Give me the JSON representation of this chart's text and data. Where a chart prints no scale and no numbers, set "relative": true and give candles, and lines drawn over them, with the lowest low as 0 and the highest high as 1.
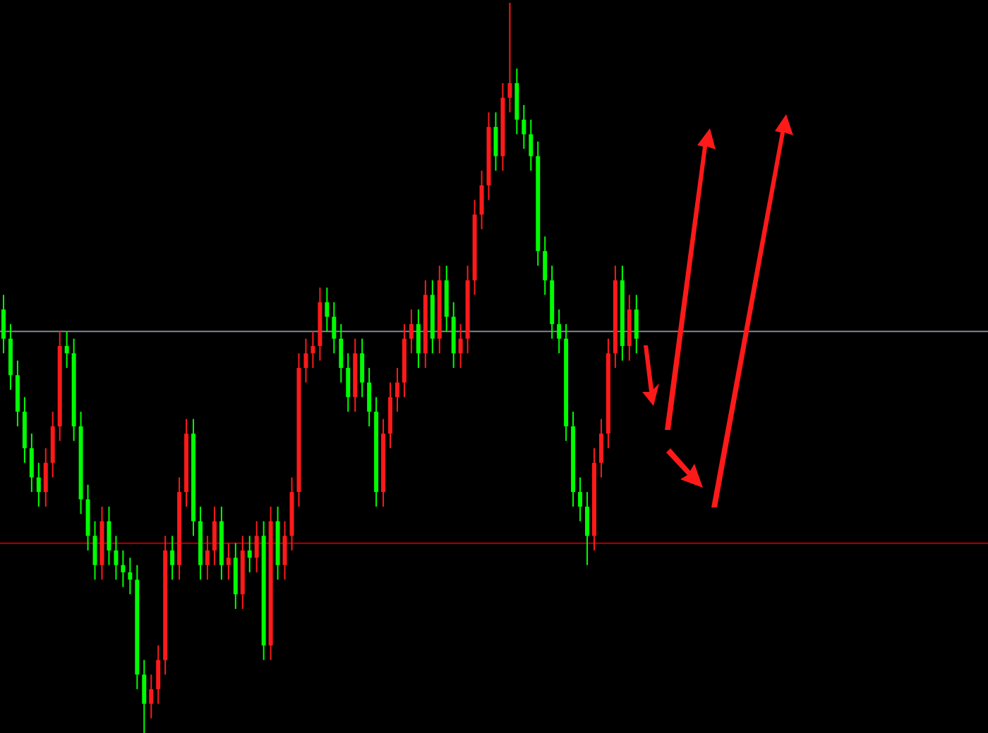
{
  "chart_data": {
    "type": "candlestick",
    "relative": true,
    "categories": [
      null,
      null,
      null,
      null,
      null,
      null,
      null,
      null,
      null,
      null,
      null,
      null,
      null,
      null,
      null,
      null,
      null,
      null,
      null,
      null,
      null,
      null,
      null,
      null,
      null,
      null,
      null,
      null,
      null,
      null,
      null,
      null,
      null,
      null,
      null,
      null,
      null,
      null,
      null,
      null,
      null,
      null,
      null,
      null,
      null,
      null,
      null,
      null,
      null,
      null,
      null,
      null,
      null,
      null,
      null,
      null,
      null,
      null,
      null,
      null,
      null,
      null,
      null,
      null,
      null,
      null,
      null,
      null,
      null,
      null,
      null,
      null,
      null,
      null,
      null,
      null,
      null,
      null,
      null,
      null,
      null,
      null,
      null,
      null,
      null,
      null,
      null,
      null,
      null,
      null,
      null
    ],
    "ohlc": [
      [
        0.58,
        0.6,
        0.52,
        0.54
      ],
      [
        0.54,
        0.56,
        0.47,
        0.49
      ],
      [
        0.49,
        0.51,
        0.42,
        0.44
      ],
      [
        0.44,
        0.46,
        0.37,
        0.39
      ],
      [
        0.39,
        0.41,
        0.33,
        0.35
      ],
      [
        0.35,
        0.37,
        0.31,
        0.33
      ],
      [
        0.33,
        0.39,
        0.31,
        0.37
      ],
      [
        0.37,
        0.44,
        0.35,
        0.42
      ],
      [
        0.42,
        0.55,
        0.4,
        0.53
      ],
      [
        0.53,
        0.55,
        0.5,
        0.52
      ],
      [
        0.52,
        0.54,
        0.4,
        0.42
      ],
      [
        0.42,
        0.44,
        0.3,
        0.32
      ],
      [
        0.32,
        0.34,
        0.25,
        0.27
      ],
      [
        0.27,
        0.29,
        0.21,
        0.23
      ],
      [
        0.23,
        0.31,
        0.21,
        0.29
      ],
      [
        0.29,
        0.31,
        0.23,
        0.25
      ],
      [
        0.25,
        0.27,
        0.21,
        0.23
      ],
      [
        0.23,
        0.25,
        0.2,
        0.22
      ],
      [
        0.22,
        0.24,
        0.19,
        0.21
      ],
      [
        0.21,
        0.23,
        0.06,
        0.08
      ],
      [
        0.08,
        0.1,
        0,
        0.04
      ],
      [
        0.04,
        0.08,
        0.02,
        0.06
      ],
      [
        0.06,
        0.12,
        0.04,
        0.1
      ],
      [
        0.1,
        0.27,
        0.08,
        0.25
      ],
      [
        0.25,
        0.27,
        0.21,
        0.23
      ],
      [
        0.23,
        0.35,
        0.21,
        0.33
      ],
      [
        0.33,
        0.43,
        0.31,
        0.41
      ],
      [
        0.41,
        0.43,
        0.27,
        0.29
      ],
      [
        0.29,
        0.31,
        0.21,
        0.23
      ],
      [
        0.23,
        0.27,
        0.21,
        0.25
      ],
      [
        0.25,
        0.31,
        0.23,
        0.29
      ],
      [
        0.29,
        0.31,
        0.21,
        0.23
      ],
      [
        0.23,
        0.26,
        0.21,
        0.24
      ],
      [
        0.24,
        0.26,
        0.17,
        0.19
      ],
      [
        0.19,
        0.27,
        0.17,
        0.25
      ],
      [
        0.25,
        0.27,
        0.22,
        0.24
      ],
      [
        0.24,
        0.29,
        0.22,
        0.27
      ],
      [
        0.27,
        0.29,
        0.1,
        0.12
      ],
      [
        0.12,
        0.31,
        0.1,
        0.29
      ],
      [
        0.29,
        0.31,
        0.21,
        0.23
      ],
      [
        0.23,
        0.29,
        0.21,
        0.27
      ],
      [
        0.27,
        0.35,
        0.25,
        0.33
      ],
      [
        0.33,
        0.52,
        0.31,
        0.5
      ],
      [
        0.5,
        0.54,
        0.48,
        0.52
      ],
      [
        0.52,
        0.55,
        0.5,
        0.53
      ],
      [
        0.53,
        0.61,
        0.51,
        0.59
      ],
      [
        0.59,
        0.61,
        0.55,
        0.57
      ],
      [
        0.57,
        0.59,
        0.52,
        0.54
      ],
      [
        0.54,
        0.56,
        0.48,
        0.5
      ],
      [
        0.5,
        0.52,
        0.44,
        0.46
      ],
      [
        0.46,
        0.54,
        0.44,
        0.52
      ],
      [
        0.52,
        0.54,
        0.46,
        0.48
      ],
      [
        0.48,
        0.5,
        0.42,
        0.44
      ],
      [
        0.44,
        0.46,
        0.31,
        0.33
      ],
      [
        0.33,
        0.43,
        0.31,
        0.41
      ],
      [
        0.41,
        0.48,
        0.39,
        0.46
      ],
      [
        0.46,
        0.5,
        0.44,
        0.48
      ],
      [
        0.48,
        0.56,
        0.46,
        0.54
      ],
      [
        0.54,
        0.58,
        0.52,
        0.56
      ],
      [
        0.56,
        0.58,
        0.5,
        0.52
      ],
      [
        0.52,
        0.62,
        0.5,
        0.6
      ],
      [
        0.6,
        0.62,
        0.52,
        0.54
      ],
      [
        0.54,
        0.64,
        0.52,
        0.62
      ],
      [
        0.62,
        0.64,
        0.55,
        0.57
      ],
      [
        0.57,
        0.59,
        0.5,
        0.52
      ],
      [
        0.52,
        0.56,
        0.5,
        0.54
      ],
      [
        0.54,
        0.64,
        0.52,
        0.62
      ],
      [
        0.62,
        0.73,
        0.6,
        0.71
      ],
      [
        0.71,
        0.77,
        0.69,
        0.75
      ],
      [
        0.75,
        0.85,
        0.73,
        0.83
      ],
      [
        0.83,
        0.85,
        0.77,
        0.79
      ],
      [
        0.79,
        0.89,
        0.77,
        0.87
      ],
      [
        0.87,
        1,
        0.85,
        0.89
      ],
      [
        0.89,
        0.91,
        0.82,
        0.84
      ],
      [
        0.84,
        0.86,
        0.8,
        0.82
      ],
      [
        0.82,
        0.84,
        0.77,
        0.79
      ],
      [
        0.79,
        0.81,
        0.64,
        0.66
      ],
      [
        0.66,
        0.68,
        0.6,
        0.62
      ],
      [
        0.62,
        0.64,
        0.54,
        0.56
      ],
      [
        0.56,
        0.58,
        0.52,
        0.54
      ],
      [
        0.54,
        0.56,
        0.4,
        0.42
      ],
      [
        0.42,
        0.44,
        0.31,
        0.33
      ],
      [
        0.33,
        0.35,
        0.29,
        0.31
      ],
      [
        0.31,
        0.33,
        0.23,
        0.27
      ],
      [
        0.27,
        0.39,
        0.25,
        0.37
      ],
      [
        0.37,
        0.43,
        0.35,
        0.41
      ],
      [
        0.41,
        0.54,
        0.39,
        0.52
      ],
      [
        0.52,
        0.64,
        0.5,
        0.62
      ],
      [
        0.62,
        0.64,
        0.51,
        0.53
      ],
      [
        0.53,
        0.6,
        0.51,
        0.58
      ],
      [
        0.58,
        0.6,
        0.52,
        0.54
      ]
    ],
    "colors": [
      "#00ff00",
      "#00ff00",
      "#00ff00",
      "#00ff00",
      "#00ff00",
      "#00ff00",
      "#ff1a1a",
      "#ff1a1a",
      "#ff1a1a",
      "#00ff00",
      "#00ff00",
      "#00ff00",
      "#00ff00",
      "#00ff00",
      "#ff1a1a",
      "#00ff00",
      "#00ff00",
      "#00ff00",
      "#00ff00",
      "#00ff00",
      "#00ff00",
      "#ff1a1a",
      "#ff1a1a",
      "#ff1a1a",
      "#00ff00",
      "#ff1a1a",
      "#ff1a1a",
      "#00ff00",
      "#00ff00",
      "#ff1a1a",
      "#ff1a1a",
      "#00ff00",
      "#ff1a1a",
      "#00ff00",
      "#ff1a1a",
      "#00ff00",
      "#ff1a1a",
      "#00ff00",
      "#ff1a1a",
      "#00ff00",
      "#ff1a1a",
      "#ff1a1a",
      "#ff1a1a",
      "#ff1a1a",
      "#ff1a1a",
      "#ff1a1a",
      "#00ff00",
      "#00ff00",
      "#00ff00",
      "#00ff00",
      "#ff1a1a",
      "#00ff00",
      "#00ff00",
      "#00ff00",
      "#ff1a1a",
      "#ff1a1a",
      "#ff1a1a",
      "#ff1a1a",
      "#ff1a1a",
      "#00ff00",
      "#ff1a1a",
      "#00ff00",
      "#ff1a1a",
      "#00ff00",
      "#00ff00",
      "#ff1a1a",
      "#ff1a1a",
      "#ff1a1a",
      "#ff1a1a",
      "#ff1a1a",
      "#00ff00",
      "#ff1a1a",
      "#ff1a1a",
      "#00ff00",
      "#00ff00",
      "#00ff00",
      "#00ff00",
      "#00ff00",
      "#00ff00",
      "#00ff00",
      "#00ff00",
      "#00ff00",
      "#00ff00",
      "#00ff00",
      "#ff1a1a",
      "#ff1a1a",
      "#ff1a1a",
      "#ff1a1a",
      "#00ff00",
      "#ff1a1a",
      "#00ff00"
    ],
    "ref_lines": [
      {
        "axis": "y",
        "value": 0.55,
        "color": "#7f8790"
      },
      {
        "axis": "y",
        "value": 0.26,
        "color": "#b00000"
      }
    ],
    "legend": false,
    "tick_labels": false
  }
}
